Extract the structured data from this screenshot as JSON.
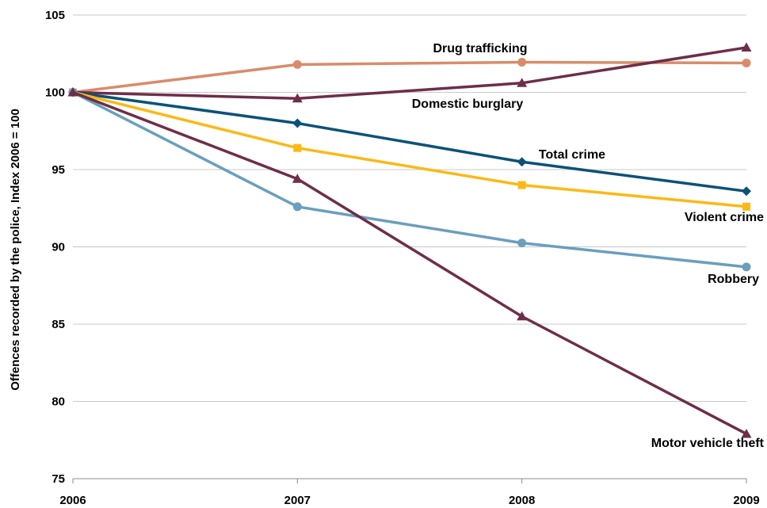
{
  "chart_data": {
    "type": "line",
    "title": "",
    "xlabel": "",
    "ylabel": "Offences recorded by the police, Index 2006 = 100",
    "x": [
      "2006",
      "2007",
      "2008",
      "2009"
    ],
    "ylim": [
      75,
      105
    ],
    "yticks": [
      75,
      80,
      85,
      90,
      95,
      100,
      105
    ],
    "grid": true,
    "legend": "none",
    "series": [
      {
        "name": "Drug trafficking",
        "color": "#d98c6a",
        "marker": "circle",
        "values": [
          100,
          101.8,
          101.95,
          101.9
        ]
      },
      {
        "name": "Domestic burglary",
        "color": "#6e2e48",
        "marker": "triangle",
        "values": [
          100,
          99.6,
          100.6,
          102.9
        ]
      },
      {
        "name": "Total crime",
        "color": "#0b5278",
        "marker": "diamond",
        "values": [
          100,
          98.0,
          95.5,
          93.6
        ]
      },
      {
        "name": "Violent crime",
        "color": "#fbb916",
        "marker": "square",
        "values": [
          100,
          96.4,
          94.0,
          92.6
        ]
      },
      {
        "name": "Robbery",
        "color": "#6a9fbe",
        "marker": "circle",
        "values": [
          100,
          92.6,
          90.25,
          88.7
        ]
      },
      {
        "name": "Motor vehicle theft",
        "color": "#6e2e48",
        "marker": "triangle",
        "values": [
          100,
          94.4,
          85.5,
          77.9
        ]
      }
    ]
  }
}
